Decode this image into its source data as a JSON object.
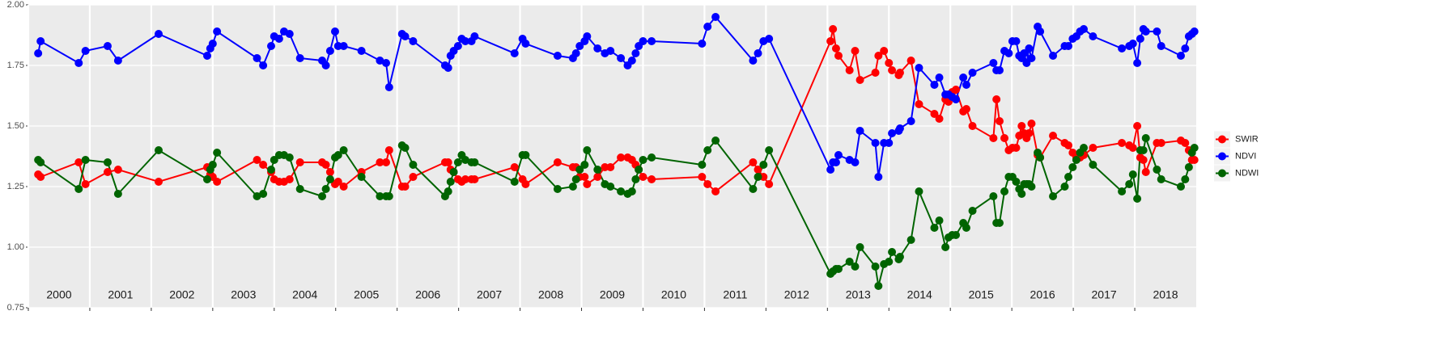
{
  "chart_data": {
    "type": "line",
    "x": [
      2000.16,
      2000.2,
      2000.82,
      2000.93,
      2001.29,
      2001.46,
      2002.12,
      2002.91,
      2002.96,
      2003.0,
      2003.07,
      2003.72,
      2003.82,
      2003.95,
      2004.0,
      2004.08,
      2004.16,
      2004.25,
      2004.42,
      2004.78,
      2004.84,
      2004.91,
      2004.99,
      2005.04,
      2005.13,
      2005.42,
      2005.72,
      2005.82,
      2005.87,
      2006.08,
      2006.13,
      2006.26,
      2006.78,
      2006.83,
      2006.87,
      2006.92,
      2006.99,
      2007.05,
      2007.11,
      2007.21,
      2007.26,
      2007.91,
      2008.04,
      2008.09,
      2008.61,
      2008.86,
      2008.91,
      2008.97,
      2009.05,
      2009.09,
      2009.26,
      2009.38,
      2009.47,
      2009.64,
      2009.75,
      2009.82,
      2009.88,
      2009.93,
      2010.0,
      2010.14,
      2010.96,
      2011.05,
      2011.18,
      2011.79,
      2011.87,
      2011.96,
      2012.05,
      2013.05,
      2013.09,
      2013.14,
      2013.18,
      2013.36,
      2013.45,
      2013.53,
      2013.78,
      2013.83,
      2013.92,
      2014.0,
      2014.05,
      2014.16,
      2014.18,
      2014.36,
      2014.49,
      2014.74,
      2014.82,
      2014.92,
      2014.97,
      2015.03,
      2015.09,
      2015.21,
      2015.26,
      2015.36,
      2015.7,
      2015.75,
      2015.8,
      2015.88,
      2015.95,
      2016.01,
      2016.07,
      2016.12,
      2016.16,
      2016.2,
      2016.24,
      2016.28,
      2016.32,
      2016.42,
      2016.46,
      2016.67,
      2016.86,
      2016.92,
      2016.99,
      2017.05,
      2017.11,
      2017.17,
      2017.32,
      2017.79,
      2017.91,
      2017.97,
      2018.04,
      2018.09,
      2018.14,
      2018.18,
      2018.36,
      2018.43,
      2018.75,
      2018.82,
      2018.88,
      2018.93,
      2018.97
    ],
    "series": [
      {
        "name": "SWIR",
        "color": "#ff0000",
        "values": [
          1.3,
          1.29,
          1.35,
          1.26,
          1.31,
          1.32,
          1.27,
          1.33,
          1.3,
          1.29,
          1.27,
          1.36,
          1.34,
          1.31,
          1.28,
          1.27,
          1.27,
          1.28,
          1.35,
          1.35,
          1.34,
          1.31,
          1.26,
          1.27,
          1.25,
          1.31,
          1.35,
          1.35,
          1.4,
          1.25,
          1.25,
          1.29,
          1.35,
          1.35,
          1.32,
          1.31,
          1.28,
          1.27,
          1.28,
          1.28,
          1.28,
          1.33,
          1.28,
          1.26,
          1.35,
          1.33,
          1.33,
          1.29,
          1.29,
          1.26,
          1.29,
          1.33,
          1.33,
          1.37,
          1.37,
          1.36,
          1.34,
          1.32,
          1.29,
          1.28,
          1.29,
          1.26,
          1.23,
          1.35,
          1.32,
          1.29,
          1.26,
          1.85,
          1.9,
          1.82,
          1.79,
          1.73,
          1.81,
          1.69,
          1.72,
          1.79,
          1.81,
          1.76,
          1.73,
          1.71,
          1.72,
          1.77,
          1.59,
          1.55,
          1.53,
          1.61,
          1.6,
          1.64,
          1.65,
          1.56,
          1.57,
          1.5,
          1.45,
          1.61,
          1.52,
          1.45,
          1.4,
          1.41,
          1.41,
          1.46,
          1.5,
          1.47,
          1.45,
          1.47,
          1.51,
          1.38,
          1.37,
          1.46,
          1.43,
          1.42,
          1.39,
          1.37,
          1.37,
          1.38,
          1.41,
          1.43,
          1.42,
          1.41,
          1.5,
          1.37,
          1.36,
          1.31,
          1.43,
          1.43,
          1.44,
          1.43,
          1.4,
          1.36,
          1.36
        ]
      },
      {
        "name": "NDVI",
        "color": "#0000ff",
        "values": [
          1.8,
          1.85,
          1.76,
          1.81,
          1.83,
          1.77,
          1.88,
          1.79,
          1.82,
          1.84,
          1.89,
          1.78,
          1.75,
          1.83,
          1.87,
          1.86,
          1.89,
          1.88,
          1.78,
          1.77,
          1.75,
          1.81,
          1.89,
          1.83,
          1.83,
          1.81,
          1.77,
          1.76,
          1.66,
          1.88,
          1.87,
          1.85,
          1.75,
          1.74,
          1.79,
          1.81,
          1.83,
          1.86,
          1.85,
          1.85,
          1.87,
          1.8,
          1.86,
          1.84,
          1.79,
          1.78,
          1.8,
          1.83,
          1.85,
          1.87,
          1.82,
          1.8,
          1.81,
          1.78,
          1.75,
          1.77,
          1.8,
          1.83,
          1.85,
          1.85,
          1.84,
          1.91,
          1.95,
          1.77,
          1.8,
          1.85,
          1.86,
          1.32,
          1.35,
          1.35,
          1.38,
          1.36,
          1.35,
          1.48,
          1.43,
          1.29,
          1.43,
          1.43,
          1.47,
          1.48,
          1.49,
          1.52,
          1.74,
          1.67,
          1.7,
          1.63,
          1.63,
          1.62,
          1.61,
          1.7,
          1.67,
          1.72,
          1.76,
          1.73,
          1.73,
          1.81,
          1.8,
          1.85,
          1.85,
          1.79,
          1.78,
          1.8,
          1.76,
          1.82,
          1.78,
          1.91,
          1.89,
          1.79,
          1.83,
          1.83,
          1.86,
          1.87,
          1.89,
          1.9,
          1.87,
          1.82,
          1.83,
          1.84,
          1.76,
          1.86,
          1.9,
          1.89,
          1.89,
          1.83,
          1.79,
          1.82,
          1.87,
          1.88,
          1.89
        ]
      },
      {
        "name": "NDWI",
        "color": "#006400",
        "values": [
          1.36,
          1.35,
          1.24,
          1.36,
          1.35,
          1.22,
          1.4,
          1.28,
          1.32,
          1.34,
          1.39,
          1.21,
          1.22,
          1.32,
          1.36,
          1.38,
          1.38,
          1.37,
          1.24,
          1.21,
          1.24,
          1.28,
          1.37,
          1.38,
          1.4,
          1.29,
          1.21,
          1.21,
          1.21,
          1.42,
          1.41,
          1.34,
          1.21,
          1.23,
          1.27,
          1.31,
          1.35,
          1.38,
          1.36,
          1.35,
          1.35,
          1.27,
          1.38,
          1.38,
          1.24,
          1.25,
          1.28,
          1.32,
          1.34,
          1.4,
          1.32,
          1.26,
          1.25,
          1.23,
          1.22,
          1.23,
          1.28,
          1.32,
          1.36,
          1.37,
          1.34,
          1.4,
          1.44,
          1.24,
          1.29,
          1.34,
          1.4,
          0.89,
          0.9,
          0.91,
          0.91,
          0.94,
          0.92,
          1.0,
          0.92,
          0.84,
          0.93,
          0.94,
          0.98,
          0.95,
          0.96,
          1.03,
          1.23,
          1.08,
          1.11,
          1.0,
          1.04,
          1.05,
          1.05,
          1.1,
          1.08,
          1.15,
          1.21,
          1.1,
          1.1,
          1.23,
          1.29,
          1.29,
          1.27,
          1.24,
          1.22,
          1.26,
          1.26,
          1.26,
          1.25,
          1.39,
          1.37,
          1.21,
          1.25,
          1.29,
          1.33,
          1.36,
          1.39,
          1.41,
          1.34,
          1.23,
          1.26,
          1.3,
          1.2,
          1.4,
          1.4,
          1.45,
          1.32,
          1.28,
          1.25,
          1.28,
          1.33,
          1.39,
          1.41
        ]
      }
    ],
    "xlim": [
      2000,
      2019
    ],
    "ylim": [
      0.75,
      2.0
    ],
    "yticks": [
      {
        "value": 0.75,
        "label": "0.75"
      },
      {
        "value": 1.0,
        "label": "1.00"
      },
      {
        "value": 1.25,
        "label": "1.25"
      },
      {
        "value": 1.5,
        "label": "1.50"
      },
      {
        "value": 1.75,
        "label": "1.75"
      },
      {
        "value": 2.0,
        "label": "2.00"
      }
    ],
    "year_bands": [
      {
        "value": 2000,
        "label": "2000"
      },
      {
        "value": 2001,
        "label": "2001"
      },
      {
        "value": 2002,
        "label": "2002"
      },
      {
        "value": 2003,
        "label": "2003"
      },
      {
        "value": 2004,
        "label": "2004"
      },
      {
        "value": 2005,
        "label": "2005"
      },
      {
        "value": 2006,
        "label": "2006"
      },
      {
        "value": 2007,
        "label": "2007"
      },
      {
        "value": 2008,
        "label": "2008"
      },
      {
        "value": 2009,
        "label": "2009"
      },
      {
        "value": 2010,
        "label": "2010"
      },
      {
        "value": 2011,
        "label": "2011"
      },
      {
        "value": 2012,
        "label": "2012"
      },
      {
        "value": 2013,
        "label": "2013"
      },
      {
        "value": 2014,
        "label": "2014"
      },
      {
        "value": 2015,
        "label": "2015"
      },
      {
        "value": 2016,
        "label": "2016"
      },
      {
        "value": 2017,
        "label": "2017"
      },
      {
        "value": 2018,
        "label": "2018"
      }
    ],
    "grid": true,
    "legend_position": "right"
  }
}
